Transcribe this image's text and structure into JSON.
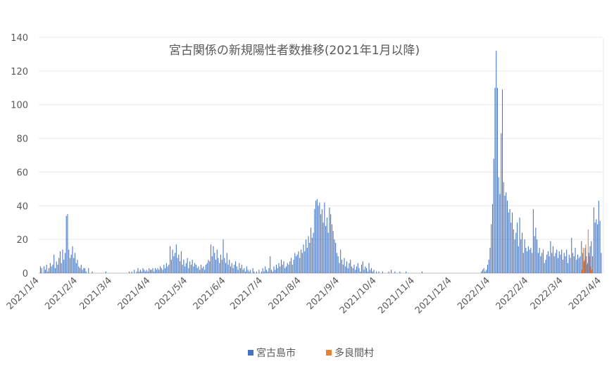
{
  "chart_data": {
    "type": "bar",
    "title": "宮古関係の新規陽性者数推移(2021年1月以降)",
    "xlabel": "",
    "ylabel": "",
    "ylim": [
      0,
      140
    ],
    "yticks": [
      0,
      20,
      40,
      60,
      80,
      100,
      120,
      140
    ],
    "grid": true,
    "legend": "bottom",
    "x_ticks": [
      "2021/1/4",
      "2021/2/4",
      "2021/3/4",
      "2021/4/4",
      "2021/5/4",
      "2021/6/4",
      "2021/7/4",
      "2021/8/4",
      "2021/9/4",
      "2021/10/4",
      "2021/11/4",
      "2021/12/4",
      "2022/1/4",
      "2022/2/4",
      "2022/3/4",
      "2022/4/4"
    ],
    "x": [
      "2021/1/4",
      "2021/1/5",
      "2021/1/6",
      "2021/1/7",
      "2021/1/8",
      "2021/1/9",
      "2021/1/10",
      "2021/1/11",
      "2021/1/12",
      "2021/1/13",
      "2021/1/14",
      "2021/1/15",
      "2021/1/16",
      "2021/1/17",
      "2021/1/18",
      "2021/1/19",
      "2021/1/20",
      "2021/1/21",
      "2021/1/22",
      "2021/1/23",
      "2021/1/24",
      "2021/1/25",
      "2021/1/26",
      "2021/1/27",
      "2021/1/28",
      "2021/1/29",
      "2021/1/30",
      "2021/1/31",
      "2021/2/1",
      "2021/2/2",
      "2021/2/3",
      "2021/2/4",
      "2021/2/5",
      "2021/2/6",
      "2021/2/7",
      "2021/2/8",
      "2021/2/9",
      "2021/2/10",
      "2021/2/11",
      "2021/2/12",
      "2021/2/13",
      "2021/2/14",
      "2021/2/15",
      "2021/2/16",
      "2021/2/17",
      "2021/2/18",
      "2021/2/19",
      "2021/2/20",
      "2021/2/21",
      "2021/2/22",
      "2021/2/23",
      "2021/2/24",
      "2021/2/25",
      "2021/2/26",
      "2021/2/27",
      "2021/2/28",
      "2021/3/1",
      "2021/3/2",
      "2021/3/3",
      "2021/3/4",
      "2021/3/5",
      "2021/3/6",
      "2021/3/7",
      "2021/3/8",
      "2021/3/9",
      "2021/3/10",
      "2021/3/11",
      "2021/3/12",
      "2021/3/13",
      "2021/3/14",
      "2021/3/15",
      "2021/3/16",
      "2021/3/17",
      "2021/3/18",
      "2021/3/19",
      "2021/3/20",
      "2021/3/21",
      "2021/3/22",
      "2021/3/23",
      "2021/3/24",
      "2021/3/25",
      "2021/3/26",
      "2021/3/27",
      "2021/3/28",
      "2021/3/29",
      "2021/3/30",
      "2021/3/31",
      "2021/4/1",
      "2021/4/2",
      "2021/4/3",
      "2021/4/4",
      "2021/4/5",
      "2021/4/6",
      "2021/4/7",
      "2021/4/8",
      "2021/4/9",
      "2021/4/10",
      "2021/4/11",
      "2021/4/12",
      "2021/4/13",
      "2021/4/14",
      "2021/4/15",
      "2021/4/16",
      "2021/4/17",
      "2021/4/18",
      "2021/4/19",
      "2021/4/20",
      "2021/4/21",
      "2021/4/22",
      "2021/4/23",
      "2021/4/24",
      "2021/4/25",
      "2021/4/26",
      "2021/4/27",
      "2021/4/28",
      "2021/4/29",
      "2021/4/30",
      "2021/5/1",
      "2021/5/2",
      "2021/5/3",
      "2021/5/4",
      "2021/5/5",
      "2021/5/6",
      "2021/5/7",
      "2021/5/8",
      "2021/5/9",
      "2021/5/10",
      "2021/5/11",
      "2021/5/12",
      "2021/5/13",
      "2021/5/14",
      "2021/5/15",
      "2021/5/16",
      "2021/5/17",
      "2021/5/18",
      "2021/5/19",
      "2021/5/20",
      "2021/5/21",
      "2021/5/22",
      "2021/5/23",
      "2021/5/24",
      "2021/5/25",
      "2021/5/26",
      "2021/5/27",
      "2021/5/28",
      "2021/5/29",
      "2021/5/30",
      "2021/5/31",
      "2021/6/1",
      "2021/6/2",
      "2021/6/3",
      "2021/6/4",
      "2021/6/5",
      "2021/6/6",
      "2021/6/7",
      "2021/6/8",
      "2021/6/9",
      "2021/6/10",
      "2021/6/11",
      "2021/6/12",
      "2021/6/13",
      "2021/6/14",
      "2021/6/15",
      "2021/6/16",
      "2021/6/17",
      "2021/6/18",
      "2021/6/19",
      "2021/6/20",
      "2021/6/21",
      "2021/6/22",
      "2021/6/23",
      "2021/6/24",
      "2021/6/25",
      "2021/6/26",
      "2021/6/27",
      "2021/6/28",
      "2021/6/29",
      "2021/6/30",
      "2021/7/1",
      "2021/7/2",
      "2021/7/3",
      "2021/7/4",
      "2021/7/5",
      "2021/7/6",
      "2021/7/7",
      "2021/7/8",
      "2021/7/9",
      "2021/7/10",
      "2021/7/11",
      "2021/7/12",
      "2021/7/13",
      "2021/7/14",
      "2021/7/15",
      "2021/7/16",
      "2021/7/17",
      "2021/7/18",
      "2021/7/19",
      "2021/7/20",
      "2021/7/21",
      "2021/7/22",
      "2021/7/23",
      "2021/7/24",
      "2021/7/25",
      "2021/7/26",
      "2021/7/27",
      "2021/7/28",
      "2021/7/29",
      "2021/7/30",
      "2021/7/31",
      "2021/8/1",
      "2021/8/2",
      "2021/8/3",
      "2021/8/4",
      "2021/8/5",
      "2021/8/6",
      "2021/8/7",
      "2021/8/8",
      "2021/8/9",
      "2021/8/10",
      "2021/8/11",
      "2021/8/12",
      "2021/8/13",
      "2021/8/14",
      "2021/8/15",
      "2021/8/16",
      "2021/8/17",
      "2021/8/18",
      "2021/8/19",
      "2021/8/20",
      "2021/8/21",
      "2021/8/22",
      "2021/8/23",
      "2021/8/24",
      "2021/8/25",
      "2021/8/26",
      "2021/8/27",
      "2021/8/28",
      "2021/8/29",
      "2021/8/30",
      "2021/8/31",
      "2021/9/1",
      "2021/9/2",
      "2021/9/3",
      "2021/9/4",
      "2021/9/5",
      "2021/9/6",
      "2021/9/7",
      "2021/9/8",
      "2021/9/9",
      "2021/9/10",
      "2021/9/11",
      "2021/9/12",
      "2021/9/13",
      "2021/9/14",
      "2021/9/15",
      "2021/9/16",
      "2021/9/17",
      "2021/9/18",
      "2021/9/19",
      "2021/9/20",
      "2021/9/21",
      "2021/9/22",
      "2021/9/23",
      "2021/9/24",
      "2021/9/25",
      "2021/9/26",
      "2021/9/27",
      "2021/9/28",
      "2021/9/29",
      "2021/9/30",
      "2021/10/1",
      "2021/10/2",
      "2021/10/3",
      "2021/10/4",
      "2021/10/5",
      "2021/10/6",
      "2021/10/7",
      "2021/10/8",
      "2021/10/9",
      "2021/10/10",
      "2021/10/11",
      "2021/10/12",
      "2021/10/13",
      "2021/10/14",
      "2021/10/15",
      "2021/10/16",
      "2021/10/17",
      "2021/10/18",
      "2021/10/19",
      "2021/10/20",
      "2021/10/21",
      "2021/10/22",
      "2021/10/23",
      "2021/10/24",
      "2021/10/25",
      "2021/10/26",
      "2021/10/27",
      "2021/10/28",
      "2021/10/29",
      "2021/10/30",
      "2021/10/31",
      "2021/11/1",
      "2021/11/2",
      "2021/11/3",
      "2021/11/4",
      "2021/11/5",
      "2021/11/6",
      "2021/11/7",
      "2021/11/8",
      "2021/11/9",
      "2021/11/10",
      "2021/11/11",
      "2021/11/12",
      "2021/11/13",
      "2021/11/14",
      "2021/11/15",
      "2021/11/16",
      "2021/11/17",
      "2021/11/18",
      "2021/11/19",
      "2021/11/20",
      "2021/11/21",
      "2021/11/22",
      "2021/11/23",
      "2021/11/24",
      "2021/11/25",
      "2021/11/26",
      "2021/11/27",
      "2021/11/28",
      "2021/11/29",
      "2021/11/30",
      "2021/12/1",
      "2021/12/2",
      "2021/12/3",
      "2021/12/4",
      "2021/12/5",
      "2021/12/6",
      "2021/12/7",
      "2021/12/8",
      "2021/12/9",
      "2021/12/10",
      "2021/12/11",
      "2021/12/12",
      "2021/12/13",
      "2021/12/14",
      "2021/12/15",
      "2021/12/16",
      "2021/12/17",
      "2021/12/18",
      "2021/12/19",
      "2021/12/20",
      "2021/12/21",
      "2021/12/22",
      "2021/12/23",
      "2021/12/24",
      "2021/12/25",
      "2021/12/26",
      "2021/12/27",
      "2021/12/28",
      "2021/12/29",
      "2021/12/30",
      "2021/12/31",
      "2022/1/1",
      "2022/1/2",
      "2022/1/3",
      "2022/1/4",
      "2022/1/5",
      "2022/1/6",
      "2022/1/7",
      "2022/1/8",
      "2022/1/9",
      "2022/1/10",
      "2022/1/11",
      "2022/1/12",
      "2022/1/13",
      "2022/1/14",
      "2022/1/15",
      "2022/1/16",
      "2022/1/17",
      "2022/1/18",
      "2022/1/19",
      "2022/1/20",
      "2022/1/21",
      "2022/1/22",
      "2022/1/23",
      "2022/1/24",
      "2022/1/25",
      "2022/1/26",
      "2022/1/27",
      "2022/1/28",
      "2022/1/29",
      "2022/1/30",
      "2022/1/31",
      "2022/2/1",
      "2022/2/2",
      "2022/2/3",
      "2022/2/4",
      "2022/2/5",
      "2022/2/6",
      "2022/2/7",
      "2022/2/8",
      "2022/2/9",
      "2022/2/10",
      "2022/2/11",
      "2022/2/12",
      "2022/2/13",
      "2022/2/14",
      "2022/2/15",
      "2022/2/16",
      "2022/2/17",
      "2022/2/18",
      "2022/2/19",
      "2022/2/20",
      "2022/2/21",
      "2022/2/22",
      "2022/2/23",
      "2022/2/24",
      "2022/2/25",
      "2022/2/26",
      "2022/2/27",
      "2022/2/28",
      "2022/3/1",
      "2022/3/2",
      "2022/3/3",
      "2022/3/4",
      "2022/3/5",
      "2022/3/6",
      "2022/3/7",
      "2022/3/8",
      "2022/3/9",
      "2022/3/10",
      "2022/3/11",
      "2022/3/12",
      "2022/3/13",
      "2022/3/14",
      "2022/3/15",
      "2022/3/16",
      "2022/3/17",
      "2022/3/18",
      "2022/3/19",
      "2022/3/20",
      "2022/3/21",
      "2022/3/22",
      "2022/3/23",
      "2022/3/24",
      "2022/3/25",
      "2022/3/26",
      "2022/3/27",
      "2022/3/28",
      "2022/3/29",
      "2022/3/30",
      "2022/3/31",
      "2022/4/1",
      "2022/4/2",
      "2022/4/3",
      "2022/4/4"
    ],
    "series": [
      {
        "name": "宮古島市",
        "color": "#4472c4",
        "values": [
          0,
          4,
          3,
          0,
          4,
          2,
          5,
          1,
          3,
          6,
          4,
          5,
          11,
          3,
          7,
          5,
          9,
          13,
          6,
          14,
          8,
          12,
          34,
          35,
          14,
          9,
          11,
          16,
          9,
          12,
          6,
          8,
          4,
          3,
          5,
          2,
          3,
          3,
          1,
          0,
          3,
          0,
          0,
          1,
          0,
          0,
          0,
          0,
          0,
          0,
          0,
          0,
          0,
          0,
          1,
          0,
          0,
          0,
          0,
          0,
          0,
          0,
          0,
          0,
          0,
          0,
          0,
          0,
          0,
          0,
          0,
          0,
          0,
          1,
          0,
          1,
          0,
          2,
          0,
          1,
          3,
          1,
          2,
          1,
          3,
          2,
          1,
          2,
          1,
          3,
          2,
          2,
          3,
          1,
          3,
          2,
          3,
          2,
          4,
          3,
          2,
          5,
          3,
          6,
          4,
          5,
          16,
          8,
          14,
          10,
          12,
          17,
          9,
          11,
          7,
          13,
          5,
          8,
          4,
          6,
          9,
          3,
          7,
          5,
          8,
          4,
          6,
          5,
          3,
          4,
          2,
          5,
          3,
          4,
          2,
          5,
          6,
          8,
          7,
          17,
          10,
          16,
          12,
          8,
          14,
          9,
          6,
          11,
          8,
          20,
          9,
          6,
          12,
          5,
          8,
          4,
          6,
          3,
          5,
          7,
          4,
          2,
          6,
          3,
          5,
          2,
          3,
          1,
          4,
          2,
          1,
          2,
          0,
          3,
          1,
          0,
          1,
          0,
          2,
          0,
          1,
          3,
          1,
          4,
          2,
          1,
          3,
          10,
          2,
          1,
          4,
          2,
          5,
          3,
          6,
          4,
          8,
          5,
          7,
          3,
          4,
          6,
          5,
          7,
          9,
          5,
          8,
          12,
          10,
          11,
          13,
          9,
          14,
          12,
          17,
          13,
          20,
          15,
          22,
          18,
          27,
          21,
          24,
          38,
          43,
          44,
          40,
          42,
          35,
          38,
          30,
          42,
          28,
          33,
          24,
          39,
          35,
          29,
          25,
          20,
          18,
          12,
          10,
          6,
          14,
          8,
          5,
          9,
          4,
          7,
          3,
          6,
          8,
          4,
          3,
          5,
          2,
          4,
          6,
          3,
          1,
          5,
          7,
          2,
          4,
          3,
          1,
          6,
          2,
          3,
          1,
          2,
          0,
          1,
          0,
          1,
          0,
          0,
          1,
          0,
          0,
          0,
          0,
          1,
          0,
          2,
          0,
          0,
          1,
          0,
          0,
          0,
          1,
          0,
          0,
          0,
          0,
          1,
          0,
          0,
          0,
          0,
          0,
          0,
          0,
          0,
          0,
          0,
          0,
          0,
          1,
          0,
          0,
          0,
          0,
          0,
          0,
          0,
          0,
          0,
          0,
          0,
          0,
          0,
          0,
          0,
          0,
          0,
          0,
          0,
          0,
          0,
          0,
          0,
          0,
          0,
          0,
          0,
          0,
          0,
          0,
          0,
          0,
          0,
          0,
          0,
          0,
          0,
          0,
          0,
          0,
          0,
          0,
          0,
          0,
          0,
          0,
          0,
          1,
          2,
          3,
          1,
          2,
          5,
          8,
          15,
          29,
          41,
          68,
          110,
          132,
          110,
          57,
          47,
          83,
          109,
          54,
          46,
          48,
          43,
          36,
          38,
          30,
          36,
          26,
          20,
          24,
          30,
          16,
          33,
          20,
          24,
          12,
          20,
          15,
          13,
          16,
          14,
          15,
          12,
          38,
          22,
          27,
          20,
          12,
          15,
          10,
          12,
          14,
          6,
          8,
          11,
          13,
          10,
          19,
          12,
          16,
          10,
          12,
          14,
          9,
          13,
          11,
          14,
          8,
          12,
          10,
          14,
          6,
          11,
          9,
          21,
          12,
          10,
          15,
          8,
          11,
          9,
          10,
          19,
          12,
          7,
          15,
          10,
          6,
          12,
          16,
          19,
          10,
          39,
          30,
          32,
          29,
          43,
          31,
          12
        ]
      },
      {
        "name": "多良間村",
        "color": "#ed7d31",
        "points": [
          {
            "x": "2022/3/19",
            "y": 2
          },
          {
            "x": "2022/3/20",
            "y": 15
          },
          {
            "x": "2022/3/21",
            "y": 8
          },
          {
            "x": "2022/3/22",
            "y": 17
          },
          {
            "x": "2022/3/23",
            "y": 5
          },
          {
            "x": "2022/3/24",
            "y": 26
          },
          {
            "x": "2022/3/25",
            "y": 10
          },
          {
            "x": "2022/3/26",
            "y": 4
          },
          {
            "x": "2022/3/27",
            "y": 2
          }
        ]
      }
    ]
  }
}
